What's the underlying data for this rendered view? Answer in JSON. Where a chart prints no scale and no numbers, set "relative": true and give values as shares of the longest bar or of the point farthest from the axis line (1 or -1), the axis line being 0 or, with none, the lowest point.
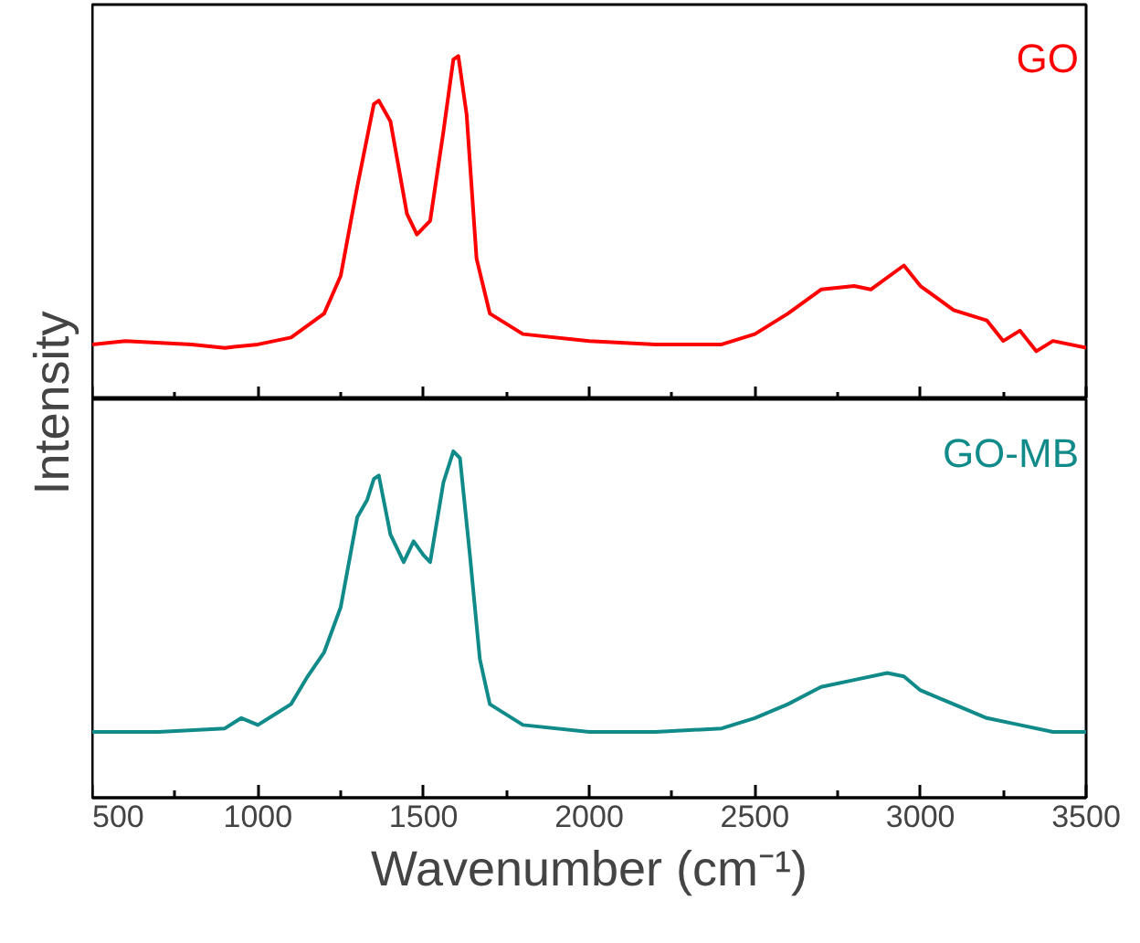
{
  "chart_data": [
    {
      "type": "line",
      "relative": true,
      "ylabel": "Intensity",
      "tick_labels": false,
      "xlim": [
        500,
        3500
      ],
      "xticks": [
        500,
        {
          "value": 750,
          "label": null
        },
        1000,
        {
          "value": 1250,
          "label": null
        },
        1500,
        {
          "value": 1750,
          "label": null
        },
        2000,
        {
          "value": 2250,
          "label": null
        },
        2500,
        {
          "value": 2750,
          "label": null
        },
        3000,
        {
          "value": 3250,
          "label": null
        },
        3500
      ],
      "series": [
        {
          "name": "GO",
          "color": "#ff0000",
          "x": [
            500,
            600,
            800,
            900,
            1000,
            1100,
            1200,
            1250,
            1300,
            1350,
            1365,
            1400,
            1450,
            1480,
            1520,
            1560,
            1590,
            1605,
            1630,
            1660,
            1700,
            1800,
            2000,
            2200,
            2400,
            2500,
            2600,
            2700,
            2800,
            2850,
            2950,
            3000,
            3100,
            3200,
            3250,
            3300,
            3350,
            3400,
            3500
          ],
          "values": [
            0.16,
            0.17,
            0.16,
            0.15,
            0.16,
            0.18,
            0.25,
            0.36,
            0.62,
            0.86,
            0.87,
            0.81,
            0.54,
            0.48,
            0.52,
            0.78,
            0.99,
            1,
            0.83,
            0.41,
            0.25,
            0.19,
            0.17,
            0.16,
            0.16,
            0.19,
            0.25,
            0.32,
            0.33,
            0.32,
            0.39,
            0.33,
            0.26,
            0.23,
            0.17,
            0.2,
            0.14,
            0.17,
            0.15
          ]
        }
      ]
    },
    {
      "type": "line",
      "relative": true,
      "xlabel": "Wavenumber (cm⁻¹)",
      "xlim": [
        500,
        3500
      ],
      "xticks": [
        500,
        {
          "value": 750,
          "label": null
        },
        1000,
        {
          "value": 1250,
          "label": null
        },
        1500,
        {
          "value": 1750,
          "label": null
        },
        2000,
        {
          "value": 2250,
          "label": null
        },
        2500,
        {
          "value": 2750,
          "label": null
        },
        3000,
        {
          "value": 3250,
          "label": null
        },
        3500
      ],
      "series": [
        {
          "name": "GO-MB",
          "color": "#118a8a",
          "x": [
            500,
            700,
            900,
            950,
            1000,
            1050,
            1100,
            1150,
            1200,
            1250,
            1300,
            1330,
            1350,
            1365,
            1400,
            1440,
            1470,
            1500,
            1520,
            1560,
            1590,
            1610,
            1640,
            1670,
            1700,
            1800,
            2000,
            2200,
            2400,
            2500,
            2600,
            2700,
            2800,
            2900,
            2950,
            3000,
            3100,
            3200,
            3300,
            3400,
            3500
          ],
          "values": [
            0.19,
            0.19,
            0.2,
            0.23,
            0.21,
            0.24,
            0.27,
            0.35,
            0.42,
            0.55,
            0.81,
            0.86,
            0.92,
            0.93,
            0.76,
            0.68,
            0.74,
            0.7,
            0.68,
            0.91,
            1,
            0.98,
            0.7,
            0.4,
            0.27,
            0.21,
            0.19,
            0.19,
            0.2,
            0.23,
            0.27,
            0.32,
            0.34,
            0.36,
            0.35,
            0.31,
            0.27,
            0.23,
            0.21,
            0.19,
            0.19
          ]
        }
      ]
    }
  ]
}
